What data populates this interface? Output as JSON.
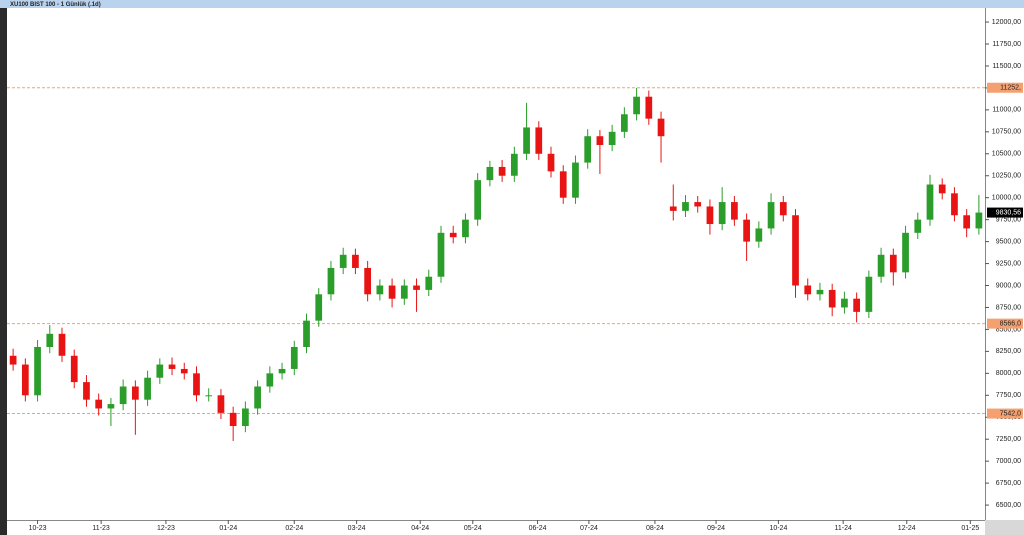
{
  "chart_data": {
    "type": "candlestick",
    "title": "XU100 BIST 100 - 1 Günlük (.1d)",
    "xlim": [
      -0.5,
      79.5
    ],
    "xticks": [
      {
        "value": 2,
        "label": "10-23"
      },
      {
        "value": 7.2,
        "label": "11-23"
      },
      {
        "value": 12.5,
        "label": "12-23"
      },
      {
        "value": 17.6,
        "label": "01-24"
      },
      {
        "value": 23,
        "label": "02-24"
      },
      {
        "value": 28.1,
        "label": "03-24"
      },
      {
        "value": 33.3,
        "label": "04-24"
      },
      {
        "value": 37.6,
        "label": "05-24"
      },
      {
        "value": 42.9,
        "label": "06-24"
      },
      {
        "value": 47.1,
        "label": "07-24"
      },
      {
        "value": 52.5,
        "label": "08-24"
      },
      {
        "value": 57.5,
        "label": "09-24"
      },
      {
        "value": 62.6,
        "label": "10-24"
      },
      {
        "value": 67.9,
        "label": "11-24"
      },
      {
        "value": 73.1,
        "label": "12-24"
      },
      {
        "value": 78.3,
        "label": "01-25"
      }
    ],
    "ylim": [
      6330,
      12160
    ],
    "yticks": [
      {
        "value": 12000,
        "label": "12000,00"
      },
      {
        "value": 11750,
        "label": "11750,00"
      },
      {
        "value": 11500,
        "label": "11500,00"
      },
      {
        "value": 11250,
        "label": "11250,00"
      },
      {
        "value": 11000,
        "label": "11000,00"
      },
      {
        "value": 10750,
        "label": "10750,00"
      },
      {
        "value": 10500,
        "label": "10500,00"
      },
      {
        "value": 10250,
        "label": "10250,00"
      },
      {
        "value": 10000,
        "label": "10000,00"
      },
      {
        "value": 9750,
        "label": "9750,00"
      },
      {
        "value": 9500,
        "label": "9500,00"
      },
      {
        "value": 9250,
        "label": "9250,00"
      },
      {
        "value": 9000,
        "label": "9000,00"
      },
      {
        "value": 8750,
        "label": "8750,00"
      },
      {
        "value": 8500,
        "label": "8500,00"
      },
      {
        "value": 8250,
        "label": "8250,00"
      },
      {
        "value": 8000,
        "label": "8000,00"
      },
      {
        "value": 7750,
        "label": "7750,00"
      },
      {
        "value": 7500,
        "label": "7500,00"
      },
      {
        "value": 7250,
        "label": "7250,00"
      },
      {
        "value": 7000,
        "label": "7000,00"
      },
      {
        "value": 6750,
        "label": "6750,00"
      },
      {
        "value": 6500,
        "label": "6500,00"
      }
    ],
    "up_color": "#2a9d2a",
    "down_color": "#e81414",
    "reference_lines": [
      {
        "value": 11252,
        "label": "11252,"
      },
      {
        "value": 8566,
        "label": "8566,0"
      },
      {
        "value": 7542,
        "label": "7542,0"
      }
    ],
    "reference_color": "#f4a070",
    "last_price": {
      "value": 9830.56,
      "label": "9830,56"
    },
    "open": [
      8200,
      8100,
      7750,
      8300,
      8450,
      8200,
      7900,
      7700,
      7600,
      7650,
      7850,
      7700,
      7950,
      8100,
      8050,
      8000,
      7750,
      7750,
      7550,
      7400,
      7600,
      7850,
      8000,
      8050,
      8300,
      8600,
      8900,
      9200,
      9350,
      9200,
      8900,
      9000,
      8850,
      9000,
      8950,
      9100,
      9600,
      9550,
      9750,
      10200,
      10350,
      10250,
      10500,
      10800,
      10500,
      10300,
      10000,
      10400,
      10700,
      10600,
      10750,
      10950,
      11150,
      10900,
      9900,
      9850,
      9950,
      9900,
      9700,
      9950,
      9750,
      9500,
      9650,
      9950,
      9800,
      9000,
      8900,
      8950,
      8750,
      8850,
      8700,
      9100,
      9350,
      9150,
      9600,
      9750,
      10150,
      10050,
      9800,
      9650
    ],
    "high": [
      8280,
      8170,
      8380,
      8550,
      8520,
      8270,
      7980,
      7770,
      7720,
      7930,
      7920,
      8030,
      8170,
      8180,
      8120,
      8080,
      7830,
      7820,
      7620,
      7680,
      7920,
      8080,
      8120,
      8370,
      8680,
      8970,
      9280,
      9430,
      9420,
      9280,
      9070,
      9080,
      9070,
      9080,
      9180,
      9680,
      9680,
      9820,
      10280,
      10420,
      10430,
      10580,
      11080,
      10870,
      10580,
      10370,
      10480,
      10780,
      10770,
      10830,
      11030,
      11250,
      11220,
      10980,
      10150,
      10030,
      10020,
      9980,
      10120,
      10020,
      9820,
      9730,
      10050,
      10020,
      9870,
      9080,
      9030,
      9020,
      8930,
      8920,
      9170,
      9430,
      9420,
      9680,
      9830,
      10260,
      10220,
      10120,
      9870,
      10030
    ],
    "low": [
      8030,
      7680,
      7680,
      8230,
      8130,
      7830,
      7620,
      7520,
      7400,
      7580,
      7300,
      7630,
      7880,
      7980,
      7930,
      7680,
      7680,
      7480,
      7230,
      7330,
      7530,
      7780,
      7930,
      7980,
      8230,
      8530,
      8830,
      9130,
      9130,
      8820,
      8830,
      8750,
      8780,
      8700,
      8880,
      9030,
      9480,
      9480,
      9680,
      10130,
      10180,
      10180,
      10430,
      10430,
      10230,
      9930,
      9930,
      10330,
      10270,
      10530,
      10680,
      10880,
      10830,
      10400,
      9740,
      9780,
      9830,
      9580,
      9630,
      9680,
      9280,
      9430,
      9580,
      9730,
      8860,
      8830,
      8830,
      8650,
      8680,
      8580,
      8630,
      9030,
      9000,
      9080,
      9530,
      9680,
      9980,
      9730,
      9550,
      9580
    ],
    "close": [
      8100,
      7750,
      8300,
      8450,
      8200,
      7900,
      7700,
      7600,
      7650,
      7850,
      7700,
      7950,
      8100,
      8050,
      8000,
      7750,
      7750,
      7550,
      7400,
      7600,
      7850,
      8000,
      8050,
      8300,
      8600,
      8900,
      9200,
      9350,
      9200,
      8900,
      9000,
      8850,
      9000,
      8950,
      9100,
      9600,
      9550,
      9750,
      10200,
      10350,
      10250,
      10500,
      10800,
      10500,
      10300,
      10000,
      10400,
      10700,
      10600,
      10750,
      10950,
      11150,
      10900,
      10700,
      9850,
      9950,
      9900,
      9700,
      9950,
      9750,
      9500,
      9650,
      9950,
      9800,
      9000,
      8900,
      8950,
      8750,
      8850,
      8700,
      9100,
      9350,
      9150,
      9600,
      9750,
      10150,
      10050,
      9800,
      9650,
      9830.56
    ]
  }
}
